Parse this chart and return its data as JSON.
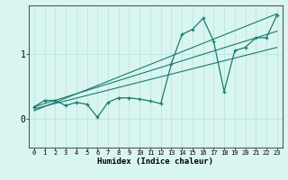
{
  "xlabel": "Humidex (Indice chaleur)",
  "ylabel": "",
  "bg_color": "#d8f5f0",
  "line_color": "#1a7a6e",
  "grid_color": "#c0e8e2",
  "axis_color": "#555555",
  "x_data": [
    0,
    1,
    2,
    3,
    4,
    5,
    6,
    7,
    8,
    9,
    10,
    11,
    12,
    13,
    14,
    15,
    16,
    17,
    18,
    19,
    20,
    21,
    22,
    23
  ],
  "y_data": [
    0.18,
    0.28,
    0.28,
    0.2,
    0.25,
    0.22,
    0.02,
    0.25,
    0.32,
    0.32,
    0.3,
    0.27,
    0.23,
    0.85,
    1.3,
    1.38,
    1.55,
    1.2,
    0.42,
    1.05,
    1.1,
    1.25,
    1.25,
    1.6
  ],
  "ylim": [
    -0.45,
    1.75
  ],
  "xlim": [
    -0.5,
    23.5
  ],
  "yticks": [
    0.0,
    1.0
  ],
  "ytick_labels": [
    "0",
    "1"
  ],
  "xticks": [
    0,
    1,
    2,
    3,
    4,
    5,
    6,
    7,
    8,
    9,
    10,
    11,
    12,
    13,
    14,
    15,
    16,
    17,
    18,
    19,
    20,
    21,
    22,
    23
  ],
  "trend1_x": [
    0,
    23
  ],
  "trend1_y": [
    0.12,
    1.62
  ],
  "trend2_x": [
    0,
    23
  ],
  "trend2_y": [
    0.15,
    1.1
  ],
  "trend3_x": [
    0,
    23
  ],
  "trend3_y": [
    0.18,
    1.35
  ]
}
